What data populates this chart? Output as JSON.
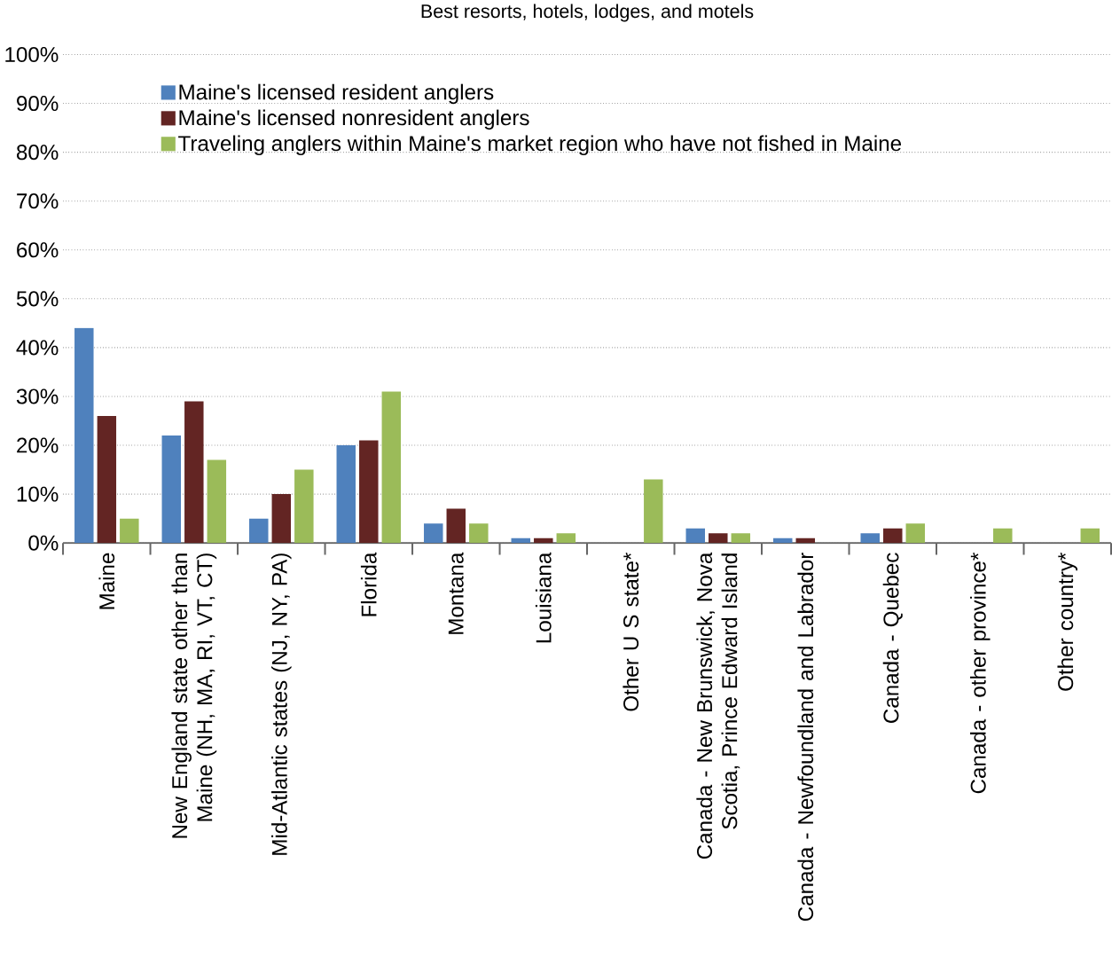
{
  "chart_data": {
    "type": "bar",
    "title": "Best resorts, hotels, lodges, and motels",
    "categories": [
      "Maine",
      "New England state other than Maine (NH, MA, RI, VT, CT)",
      "Mid-Atlantic states (NJ, NY, PA)",
      "Florida",
      "Montana",
      "Louisiana",
      "Other U S state*",
      "Canada - New Brunswick, Nova Scotia, Prince Edward Island",
      "Canada - Newfoundland and Labrador",
      "Canada - Quebec",
      "Canada - other province*",
      "Other country*"
    ],
    "series": [
      {
        "name": "Maine's licensed resident anglers",
        "color": "#4f81bd",
        "values": [
          44,
          22,
          5,
          20,
          4,
          1,
          0,
          3,
          1,
          2,
          0,
          0
        ]
      },
      {
        "name": "Maine's licensed nonresident anglers",
        "color": "#632523",
        "values": [
          26,
          29,
          10,
          21,
          7,
          1,
          0,
          2,
          1,
          3,
          0,
          0
        ]
      },
      {
        "name": "Traveling anglers within Maine's market region who have not fished in Maine",
        "color": "#9bbb59",
        "values": [
          5,
          17,
          15,
          31,
          4,
          2,
          13,
          2,
          0,
          4,
          3,
          3
        ]
      }
    ],
    "ylim": [
      0,
      100
    ],
    "yticks": [
      {
        "value": 0,
        "label": "0%"
      },
      {
        "value": 10,
        "label": "10%"
      },
      {
        "value": 20,
        "label": "20%"
      },
      {
        "value": 30,
        "label": "30%"
      },
      {
        "value": 40,
        "label": "40%"
      },
      {
        "value": 50,
        "label": "50%"
      },
      {
        "value": 60,
        "label": "60%"
      },
      {
        "value": 70,
        "label": "70%"
      },
      {
        "value": 80,
        "label": "80%"
      },
      {
        "value": 90,
        "label": "90%"
      },
      {
        "value": 100,
        "label": "100%"
      }
    ],
    "grid": "y",
    "legend": "top left"
  }
}
